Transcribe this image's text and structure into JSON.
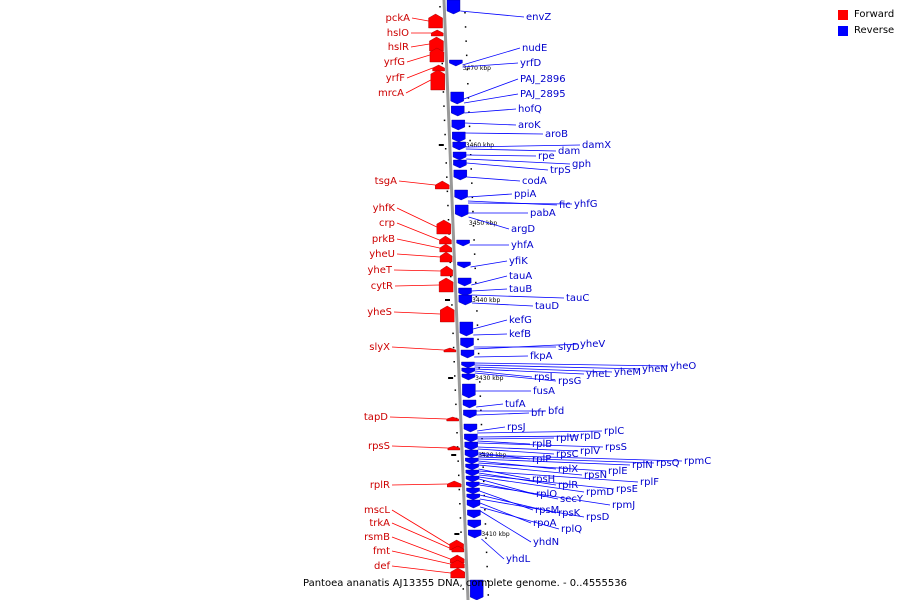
{
  "caption": "Pantoea ananatis AJ13355 DNA, complete genome. - 0..4555536",
  "legend": [
    {
      "label": "Forward",
      "color": "#ff0000"
    },
    {
      "label": "Reverse",
      "color": "#0000ff"
    }
  ],
  "colors": {
    "forward": "#ff0000",
    "reverse": "#0000ff",
    "backbone": "#999999"
  },
  "ticks": [
    "3470 kbp",
    "3460 kbp",
    "3450 kbp",
    "3440 kbp",
    "3430 kbp",
    "3420 kbp",
    "3410 kbp"
  ],
  "forward_genes": [
    "pckA",
    "hslO",
    "hslR",
    "yrfG",
    "yrfF",
    "mrcA",
    "tsgA",
    "yhfK",
    "crp",
    "prkB",
    "yheU",
    "yheT",
    "cytR",
    "yheS",
    "slyX",
    "tapD",
    "rpsS",
    "rplR",
    "mscL",
    "trkA",
    "rsmB",
    "fmt",
    "def"
  ],
  "reverse_genes": [
    "envZ",
    "nudE",
    "yrfD",
    "PAJ_2896",
    "PAJ_2895",
    "hofQ",
    "aroK",
    "aroB",
    "damX",
    "dam",
    "rpe",
    "gph",
    "trpS",
    "codA",
    "ppiA",
    "fic",
    "yhfG",
    "pabA",
    "argD",
    "yhfA",
    "yfiK",
    "tauA",
    "tauB",
    "tauC",
    "tauD",
    "kefG",
    "kefB",
    "slyD",
    "yheV",
    "fkpA",
    "yheO",
    "yheN",
    "yheM",
    "yheL",
    "rpsL",
    "rpsG",
    "fusA",
    "tufA",
    "bfd",
    "bfr",
    "rpsJ",
    "rplC",
    "rplD",
    "rplW",
    "rplB",
    "rpsS",
    "rplV",
    "rpsC",
    "rplP",
    "rpmC",
    "rpsQ",
    "rplN",
    "rplX",
    "rplE",
    "rpsN",
    "rpsH",
    "rplF",
    "rplR",
    "rpsE",
    "rpmD",
    "rplO",
    "secY",
    "rpmJ",
    "rpsM",
    "rpsK",
    "rpsD",
    "rpoA",
    "rplQ",
    "yhdN",
    "yhdL"
  ]
}
